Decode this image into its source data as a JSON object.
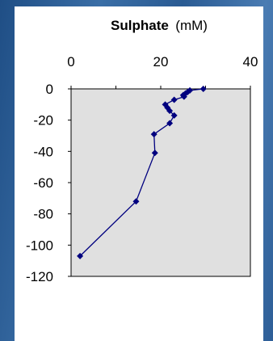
{
  "chart_data": {
    "type": "scatter",
    "title": "Sulphate",
    "title_unit": "(mM)",
    "x_axis_position": "top",
    "xlim": [
      0,
      40
    ],
    "ylim": [
      -120,
      0
    ],
    "x_ticks": [
      0,
      20,
      40
    ],
    "y_ticks": [
      0,
      -20,
      -40,
      -60,
      -80,
      -100,
      -120
    ],
    "grid": false,
    "plot_background": "#e0e0e0",
    "series": [
      {
        "color": "#00007f",
        "marker": "diamond",
        "points": [
          {
            "x": 29.5,
            "y": 0
          },
          {
            "x": 26.5,
            "y": -1
          },
          {
            "x": 26,
            "y": -2
          },
          {
            "x": 25.5,
            "y": -3
          },
          {
            "x": 25,
            "y": -4
          },
          {
            "x": 25.2,
            "y": -5
          },
          {
            "x": 23,
            "y": -7
          },
          {
            "x": 21,
            "y": -10
          },
          {
            "x": 21.5,
            "y": -12
          },
          {
            "x": 22,
            "y": -14
          },
          {
            "x": 23,
            "y": -17
          },
          {
            "x": 22,
            "y": -22
          },
          {
            "x": 18.5,
            "y": -29
          },
          {
            "x": 18.7,
            "y": -41
          },
          {
            "x": 14.5,
            "y": -72
          },
          {
            "x": 2,
            "y": -107
          }
        ]
      }
    ]
  }
}
